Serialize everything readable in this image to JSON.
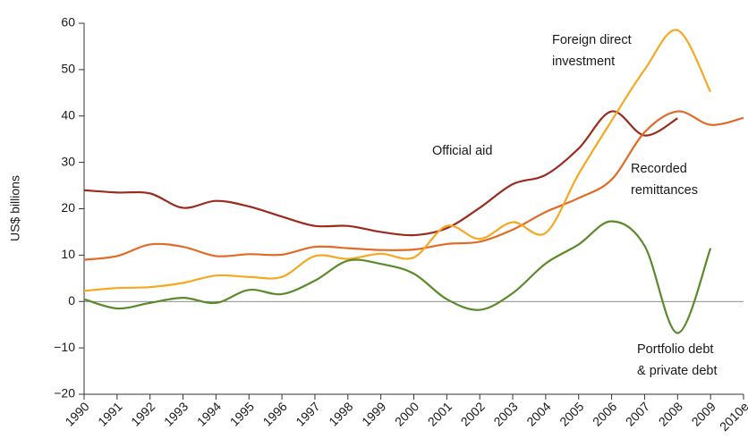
{
  "chart_data": {
    "type": "line",
    "y_label": "US$ billions",
    "categories": [
      "1990",
      "1991",
      "1992",
      "1993",
      "1994",
      "1995",
      "1996",
      "1997",
      "1998",
      "1999",
      "2000",
      "2001",
      "2002",
      "2003",
      "2004",
      "2005",
      "2006",
      "2007",
      "2008",
      "2009",
      "2010e"
    ],
    "series": [
      {
        "name": "Official aid",
        "color": "#9b2b1c",
        "values": [
          24,
          23.5,
          23.3,
          20.2,
          21.7,
          20.5,
          18.3,
          16.3,
          16.3,
          15,
          14.3,
          15.8,
          20.2,
          25.3,
          27.3,
          33,
          41,
          35.8,
          39.5,
          null,
          null
        ]
      },
      {
        "name": "Recorded remittances",
        "color": "#e06b26",
        "values": [
          9,
          9.8,
          12.3,
          11.8,
          9.8,
          10.2,
          10.1,
          11.8,
          11.5,
          11.1,
          11.2,
          12.4,
          12.9,
          15.5,
          19.3,
          22.3,
          26.3,
          36.5,
          41,
          38.1,
          39.6
        ]
      },
      {
        "name": "Foreign direct investment",
        "color": "#f6a821",
        "values": [
          2.3,
          2.9,
          3.1,
          4.0,
          5.6,
          5.3,
          5.3,
          9.8,
          9.2,
          10.3,
          9.5,
          16.3,
          13.5,
          17.1,
          14.8,
          27.5,
          39,
          50,
          58.5,
          45.2,
          null
        ]
      },
      {
        "name": "Portfolio debt & private debt",
        "color": "#5b8a2b",
        "values": [
          0.5,
          -1.5,
          -0.3,
          0.8,
          -0.3,
          2.5,
          1.6,
          4.5,
          8.8,
          8.1,
          6.0,
          0.5,
          -1.8,
          1.8,
          8.2,
          12.3,
          17.3,
          12,
          -6.8,
          11.5,
          null
        ]
      }
    ],
    "annotations": [
      {
        "lines": [
          "Foreign direct",
          "investment"
        ]
      },
      {
        "lines": [
          "Official aid"
        ]
      },
      {
        "lines": [
          "Recorded",
          "remittances"
        ]
      },
      {
        "lines": [
          "Portfolio debt",
          "& private debt"
        ]
      }
    ],
    "ylim": [
      -20,
      60
    ],
    "yticks": [
      {
        "value": -20,
        "label": "−20"
      },
      {
        "value": -10,
        "label": "−10"
      },
      0,
      10,
      20,
      30,
      40,
      50,
      60
    ],
    "grid": false
  }
}
